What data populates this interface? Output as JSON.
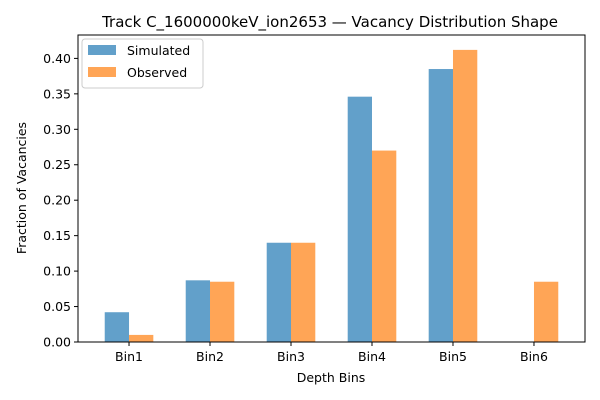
{
  "chart_data": {
    "type": "bar",
    "title": "Track C_1600000keV_ion2653 — Vacancy Distribution Shape",
    "xlabel": "Depth Bins",
    "ylabel": "Fraction of Vacancies",
    "categories": [
      "Bin1",
      "Bin2",
      "Bin3",
      "Bin4",
      "Bin5",
      "Bin6"
    ],
    "series": [
      {
        "name": "Simulated",
        "color": "#1f77b4",
        "opacity": 0.7,
        "values": [
          0.042,
          0.087,
          0.14,
          0.346,
          0.385,
          0.0
        ]
      },
      {
        "name": "Observed",
        "color": "#ff7f0e",
        "opacity": 0.7,
        "values": [
          0.01,
          0.085,
          0.14,
          0.27,
          0.412,
          0.085
        ]
      }
    ],
    "ylim": [
      0,
      0.433
    ],
    "yticks": [
      0.0,
      0.05,
      0.1,
      0.15,
      0.2,
      0.25,
      0.3,
      0.35,
      0.4
    ],
    "ytick_labels": [
      "0.00",
      "0.05",
      "0.10",
      "0.15",
      "0.20",
      "0.25",
      "0.30",
      "0.35",
      "0.40"
    ],
    "grid": false,
    "legend_position": "top-left"
  }
}
